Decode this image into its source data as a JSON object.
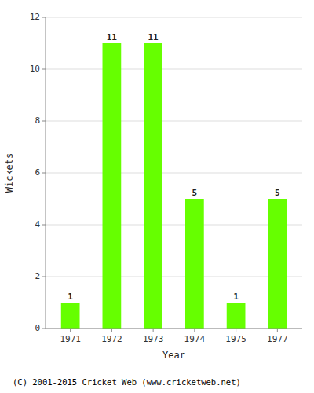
{
  "chart_data": {
    "type": "bar",
    "categories": [
      "1971",
      "1972",
      "1973",
      "1974",
      "1975",
      "1977"
    ],
    "values": [
      1,
      11,
      11,
      5,
      1,
      5
    ],
    "color": "#66FF00",
    "xlabel": "Year",
    "ylabel": "Wickets",
    "ylim": [
      0,
      12
    ],
    "yticks": [
      0,
      2,
      4,
      6,
      8,
      10,
      12
    ],
    "grid": true,
    "data_labels": true,
    "footer": "(C) 2001-2015 Cricket Web (www.cricketweb.net)"
  }
}
